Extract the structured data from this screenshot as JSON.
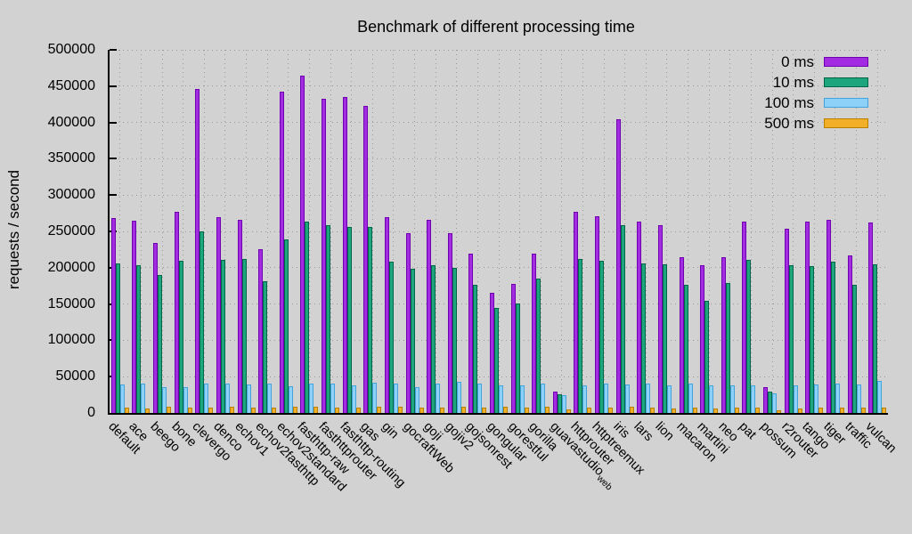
{
  "chart_data": {
    "type": "bar",
    "title": "Benchmark of different processing time",
    "xlabel": "",
    "ylabel": "requests / second",
    "ylim": [
      0,
      500000
    ],
    "ytick_step": 50000,
    "ytick_labels": [
      "0",
      "50000",
      "100000",
      "150000",
      "200000",
      "250000",
      "300000",
      "350000",
      "400000",
      "450000",
      "500000"
    ],
    "grid": "dotted",
    "legend_position": "top-right-inside",
    "background_color": "#d2d2d2",
    "grid_color": "#9a9a9a",
    "categories": [
      "default",
      "ace",
      "beego",
      "bone",
      "clevergo",
      "denco",
      "echov1",
      "echov2fasthttp",
      "echov2standard",
      "fasthttp-raw",
      "fasthttprouter",
      "fasthttp-routing",
      "gas",
      "gin",
      "gocraftWeb",
      "goji",
      "gojiv2",
      "gojsonrest",
      "gongular",
      "gorestful",
      "gorilla",
      "guavastudio_web",
      "httprouter",
      "httptreemux",
      "iris",
      "lars",
      "lion",
      "macaron",
      "martini",
      "neo",
      "pat",
      "possum",
      "r2router",
      "tango",
      "tiger",
      "traffic",
      "vulcan"
    ],
    "series": [
      {
        "name": "0 ms",
        "color": "#a32ce2",
        "border_color": "#6f00ad",
        "values": [
          268000,
          265000,
          234000,
          277000,
          446000,
          270000,
          266000,
          226000,
          442000,
          464000,
          433000,
          435000,
          423000,
          270000,
          248000,
          266000,
          248000,
          219000,
          166000,
          178000,
          219000,
          30000,
          277000,
          271000,
          405000,
          264000,
          259000,
          214000,
          203000,
          215000,
          264000,
          35000,
          254000,
          263000,
          266000,
          217000,
          262000
        ]
      },
      {
        "name": "10 ms",
        "color": "#1da57d",
        "border_color": "#006647",
        "values": [
          206000,
          203000,
          190000,
          210000,
          250000,
          211000,
          212000,
          181000,
          239000,
          263000,
          258000,
          256000,
          256000,
          208000,
          199000,
          203000,
          200000,
          177000,
          145000,
          151000,
          185000,
          26000,
          212000,
          210000,
          258000,
          206000,
          205000,
          176000,
          154000,
          179000,
          211000,
          29000,
          204000,
          202000,
          208000,
          176000,
          205000
        ]
      },
      {
        "name": "100 ms",
        "color": "#8dd0f8",
        "border_color": "#42a4db",
        "values": [
          39000,
          40000,
          36000,
          35500,
          40000,
          41000,
          39000,
          40000,
          37000,
          41000,
          40000,
          38000,
          42000,
          41000,
          35000,
          40000,
          43000,
          40000,
          38000,
          38000,
          40000,
          24000,
          38000,
          40000,
          39000,
          40000,
          38000,
          40000,
          38000,
          38000,
          38000,
          27000,
          38000,
          39000,
          40000,
          39000,
          44000
        ]
      },
      {
        "name": "500 ms",
        "color": "#f1b028",
        "border_color": "#b97f00",
        "values": [
          7000,
          6000,
          8000,
          7000,
          7000,
          9000,
          7000,
          7000,
          8000,
          8000,
          7000,
          7000,
          8000,
          8000,
          7000,
          7000,
          8000,
          7000,
          8000,
          7000,
          8000,
          5000,
          7000,
          7000,
          8000,
          7000,
          6000,
          7000,
          6000,
          7000,
          7000,
          4000,
          6000,
          7000,
          7000,
          7000,
          7000
        ]
      }
    ]
  }
}
